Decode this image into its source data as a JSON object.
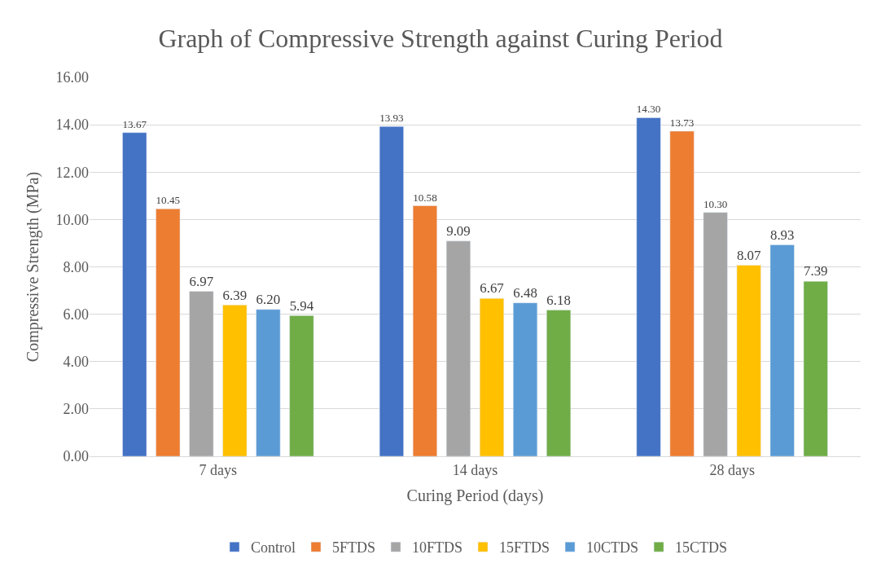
{
  "chart_data": {
    "type": "bar",
    "title": "Graph of Compressive Strength against Curing Period",
    "xlabel": "Curing Period (days)",
    "ylabel": "Compressive Strength (MPa)",
    "categories": [
      "7 days",
      "14 days",
      "28 days"
    ],
    "series": [
      {
        "name": "Control",
        "color": "#4472c4",
        "values": [
          13.67,
          13.93,
          14.3
        ],
        "value_labels": [
          "13.67",
          "13.93",
          "14.30"
        ]
      },
      {
        "name": "5FTDS",
        "color": "#ed7d31",
        "values": [
          10.45,
          10.58,
          13.73
        ],
        "value_labels": [
          "10.45",
          "10.58",
          "13.73"
        ]
      },
      {
        "name": "10FTDS",
        "color": "#a5a5a5",
        "values": [
          6.97,
          9.09,
          10.3
        ],
        "value_labels": [
          "6.97",
          "9.09",
          "10.30"
        ]
      },
      {
        "name": "15FTDS",
        "color": "#ffc000",
        "values": [
          6.39,
          6.67,
          8.07
        ],
        "value_labels": [
          "6.39",
          "6.67",
          "8.07"
        ]
      },
      {
        "name": "10CTDS",
        "color": "#5b9bd5",
        "values": [
          6.2,
          6.48,
          8.93
        ],
        "value_labels": [
          "6.20",
          "6.48",
          "8.93"
        ]
      },
      {
        "name": "15CTDS",
        "color": "#70ad47",
        "values": [
          5.94,
          6.18,
          7.39
        ],
        "value_labels": [
          "5.94",
          "6.18",
          "7.39"
        ]
      }
    ],
    "ylim": [
      0,
      16
    ],
    "yticks": [
      {
        "value": 0,
        "label": "0.00"
      },
      {
        "value": 2,
        "label": "2.00"
      },
      {
        "value": 4,
        "label": "4.00"
      },
      {
        "value": 6,
        "label": "6.00"
      },
      {
        "value": 8,
        "label": "8.00"
      },
      {
        "value": 10,
        "label": "10.00"
      },
      {
        "value": 12,
        "label": "12.00"
      },
      {
        "value": 14,
        "label": "14.00"
      },
      {
        "value": 16,
        "label": "16.00"
      }
    ],
    "grid": "y",
    "legend": "bottom"
  }
}
